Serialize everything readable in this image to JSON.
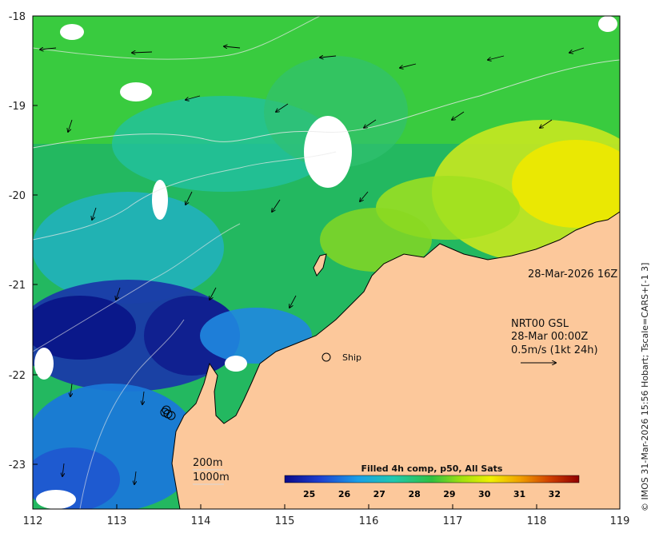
{
  "map": {
    "date_label": "28-Mar-2026 16Z",
    "current_label": {
      "line1": "NRT00 GSL",
      "line2": "28-Mar 00:00Z",
      "line3": "0.5m/s (1kt 24h)"
    },
    "ship_label": "Ship",
    "contours": {
      "line1": "200m",
      "line2": "1000m"
    },
    "colorbar": {
      "title": "Filled 4h comp, p50, All Sats",
      "ticks": [
        "25",
        "26",
        "27",
        "28",
        "29",
        "30",
        "31",
        "32"
      ],
      "range": [
        24.3,
        32.7
      ]
    },
    "credit": "© IMOS 31-Mar-2026 15:56 Hobart; Tscale=CARS+[-1 3]",
    "x_axis": {
      "ticks": [
        "112",
        "113",
        "114",
        "115",
        "116",
        "117",
        "118",
        "119"
      ],
      "range": [
        112,
        119
      ]
    },
    "y_axis": {
      "ticks": [
        "-18",
        "-19",
        "-20",
        "-21",
        "-22",
        "-23"
      ],
      "range": [
        -23.5,
        -18
      ]
    },
    "colors": {
      "land": "#fcc89b",
      "frame": "#000000",
      "sst_cool": "#0a1a8c",
      "sst_mid": "#22c070",
      "sst_warm": "#e8e000"
    }
  }
}
